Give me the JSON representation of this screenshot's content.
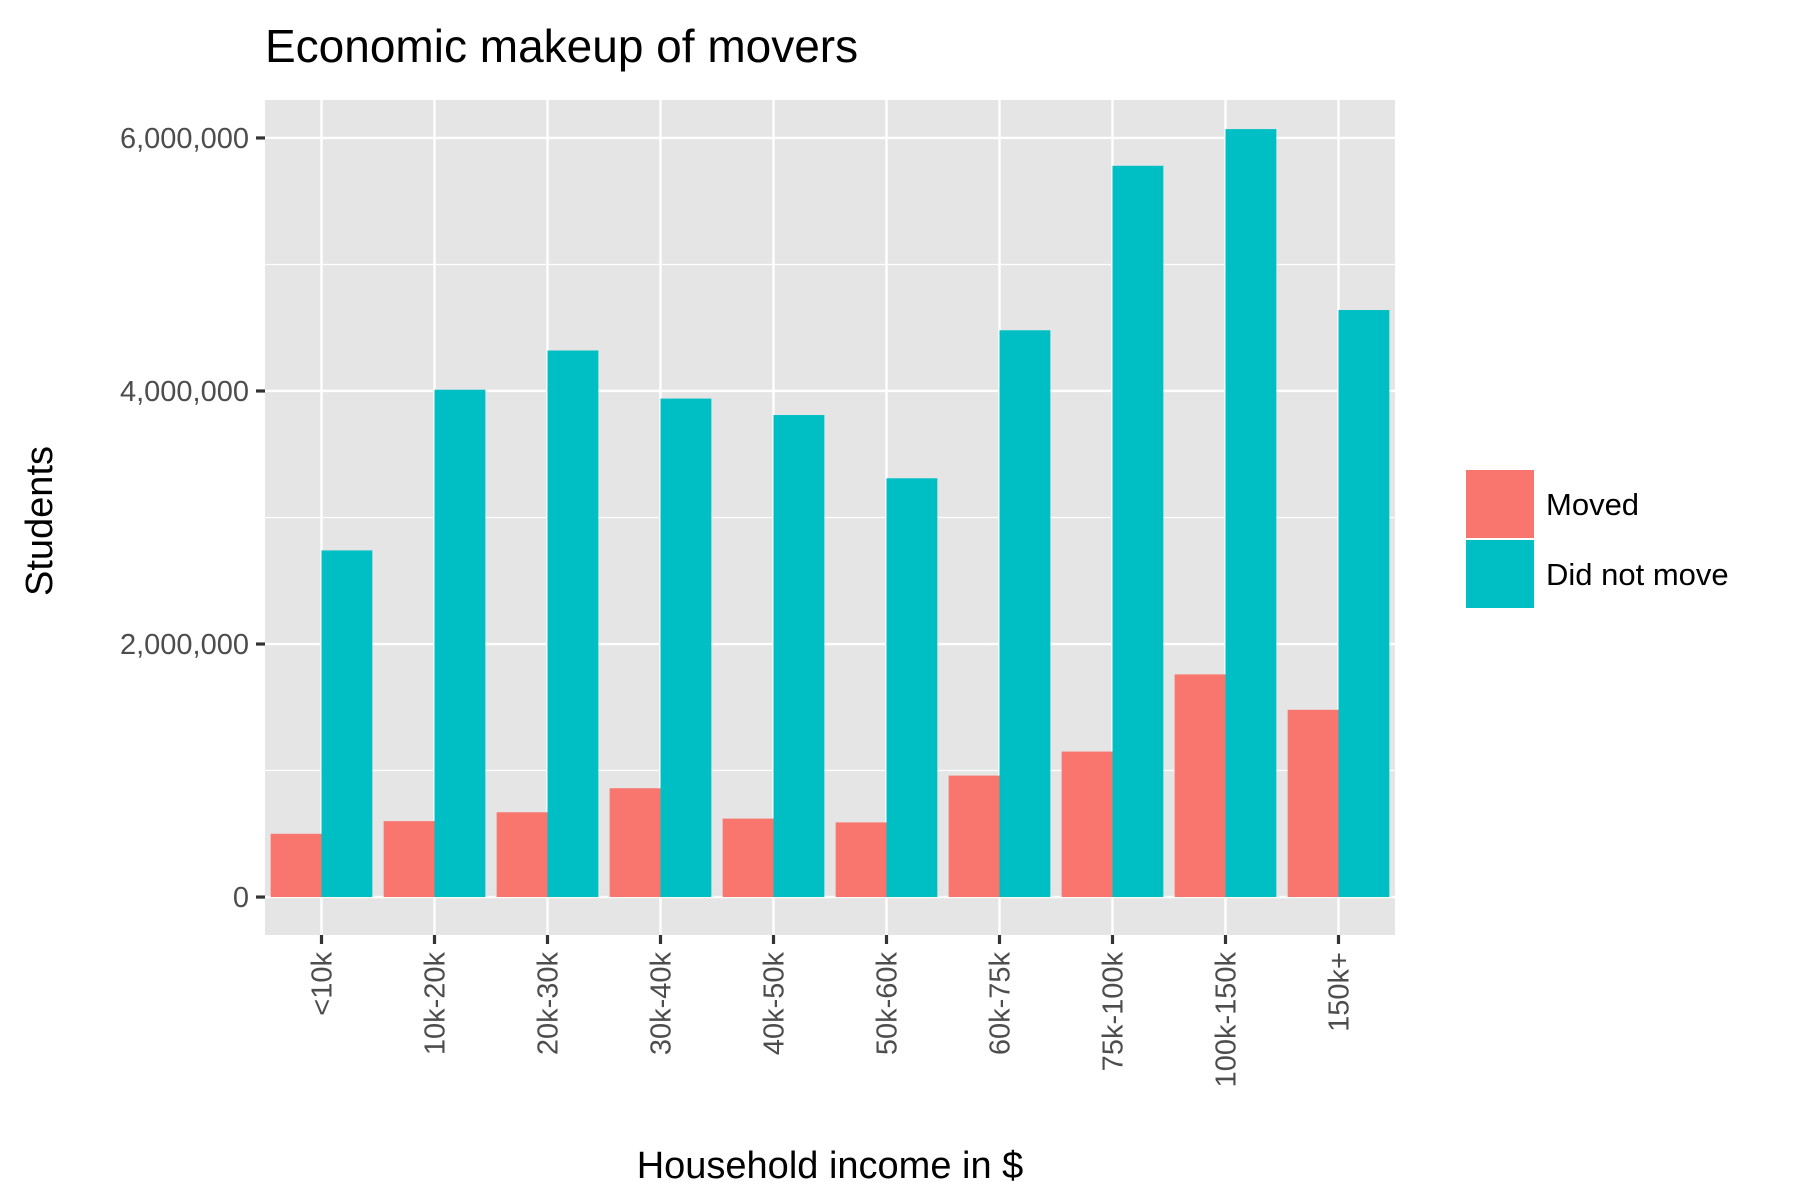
{
  "chart_data": {
    "type": "bar",
    "title": "Economic makeup of movers",
    "xlabel": "Household income in $",
    "ylabel": "Students",
    "categories": [
      "<10k",
      "10k-20k",
      "20k-30k",
      "30k-40k",
      "40k-50k",
      "50k-60k",
      "60k-75k",
      "75k-100k",
      "100k-150k",
      "150k+"
    ],
    "series": [
      {
        "name": "Moved",
        "color": "#F8766D",
        "values": [
          500000,
          600000,
          670000,
          860000,
          620000,
          590000,
          960000,
          1150000,
          1760000,
          1480000
        ]
      },
      {
        "name": "Did not move",
        "color": "#00BFC4",
        "values": [
          2740000,
          4010000,
          4320000,
          3940000,
          3810000,
          3310000,
          4480000,
          5780000,
          6070000,
          4640000
        ]
      }
    ],
    "ylim": [
      -300000,
      6300000
    ],
    "yticks": [
      0,
      2000000,
      4000000,
      6000000
    ],
    "ytick_labels": [
      "0",
      "2,000,000",
      "4,000,000",
      "6,000,000"
    ],
    "grid": true,
    "panel_background": "#E5E5E5",
    "legend_position": "right"
  }
}
